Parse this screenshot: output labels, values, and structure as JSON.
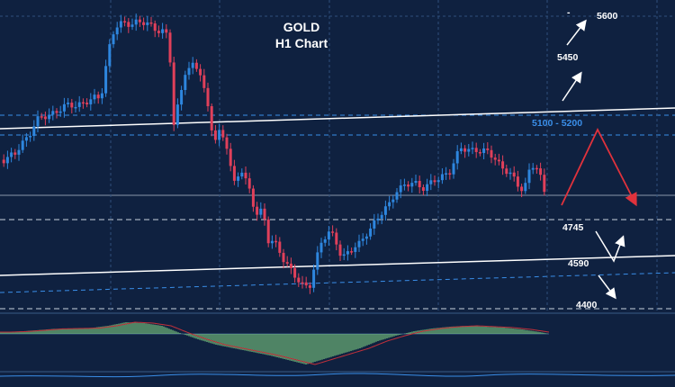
{
  "title_line1": "GOLD",
  "title_line2": "H1 Chart",
  "chart_data": {
    "type": "candlestick",
    "title": "GOLD H1 Chart",
    "colors": {
      "background": "#0f2140",
      "bull": "#2e86de",
      "bear": "#e0405a",
      "histogram": "#8fe88a",
      "signal_line": "#c0303a",
      "forecast_down": "#e0323c",
      "forecast_up": "#ffffff"
    },
    "annotations": {
      "resistance_zone": "5100 - 5200",
      "levels": [
        "5600",
        "5450",
        "4745",
        "4590",
        "4400"
      ],
      "zero_dash": "-"
    },
    "close_path": [
      [
        0,
        4985
      ],
      [
        8,
        4990
      ],
      [
        16,
        4998
      ],
      [
        24,
        5045
      ],
      [
        32,
        5075
      ],
      [
        40,
        5120
      ],
      [
        55,
        5150
      ],
      [
        70,
        5170
      ],
      [
        85,
        5185
      ],
      [
        100,
        5195
      ],
      [
        112,
        5210
      ],
      [
        118,
        5330
      ],
      [
        124,
        5430
      ],
      [
        130,
        5460
      ],
      [
        140,
        5475
      ],
      [
        152,
        5480
      ],
      [
        162,
        5470
      ],
      [
        170,
        5460
      ],
      [
        180,
        5450
      ],
      [
        188,
        5420
      ],
      [
        192,
        5090
      ],
      [
        198,
        5180
      ],
      [
        206,
        5310
      ],
      [
        214,
        5320
      ],
      [
        222,
        5300
      ],
      [
        230,
        5190
      ],
      [
        238,
        5060
      ],
      [
        244,
        5080
      ],
      [
        252,
        5030
      ],
      [
        260,
        4900
      ],
      [
        268,
        4960
      ],
      [
        276,
        4880
      ],
      [
        284,
        4790
      ],
      [
        292,
        4810
      ],
      [
        298,
        4700
      ],
      [
        304,
        4690
      ],
      [
        312,
        4640
      ],
      [
        320,
        4610
      ],
      [
        330,
        4560
      ],
      [
        338,
        4520
      ],
      [
        344,
        4530
      ],
      [
        350,
        4620
      ],
      [
        358,
        4700
      ],
      [
        366,
        4720
      ],
      [
        372,
        4700
      ],
      [
        380,
        4640
      ],
      [
        390,
        4660
      ],
      [
        400,
        4680
      ],
      [
        408,
        4730
      ],
      [
        416,
        4760
      ],
      [
        424,
        4790
      ],
      [
        432,
        4820
      ],
      [
        440,
        4880
      ],
      [
        450,
        4890
      ],
      [
        460,
        4900
      ],
      [
        470,
        4890
      ],
      [
        480,
        4900
      ],
      [
        490,
        4920
      ],
      [
        500,
        4950
      ],
      [
        506,
        4990
      ],
      [
        512,
        5020
      ],
      [
        520,
        5020
      ],
      [
        530,
        5025
      ],
      [
        540,
        5010
      ],
      [
        550,
        4990
      ],
      [
        558,
        4960
      ],
      [
        566,
        4940
      ],
      [
        574,
        4890
      ],
      [
        582,
        4880
      ],
      [
        590,
        4970
      ],
      [
        596,
        4960
      ],
      [
        602,
        4900
      ],
      [
        608,
        4820
      ]
    ],
    "oscillator": [
      [
        0,
        1.0
      ],
      [
        20,
        1.3
      ],
      [
        40,
        2.0
      ],
      [
        60,
        2.8
      ],
      [
        80,
        3.0
      ],
      [
        100,
        3.2
      ],
      [
        120,
        4.5
      ],
      [
        140,
        6.5
      ],
      [
        160,
        6.0
      ],
      [
        180,
        4.5
      ],
      [
        200,
        0.5
      ],
      [
        220,
        -3.0
      ],
      [
        240,
        -6.0
      ],
      [
        260,
        -8.0
      ],
      [
        280,
        -10.0
      ],
      [
        300,
        -12.0
      ],
      [
        320,
        -14.5
      ],
      [
        340,
        -17.0
      ],
      [
        360,
        -14.0
      ],
      [
        380,
        -11.0
      ],
      [
        400,
        -8.0
      ],
      [
        420,
        -4.0
      ],
      [
        440,
        -1.0
      ],
      [
        460,
        1.5
      ],
      [
        480,
        3.0
      ],
      [
        500,
        4.0
      ],
      [
        520,
        4.5
      ],
      [
        540,
        4.0
      ],
      [
        560,
        3.5
      ],
      [
        580,
        2.5
      ],
      [
        600,
        1.0
      ],
      [
        610,
        0.0
      ]
    ]
  }
}
